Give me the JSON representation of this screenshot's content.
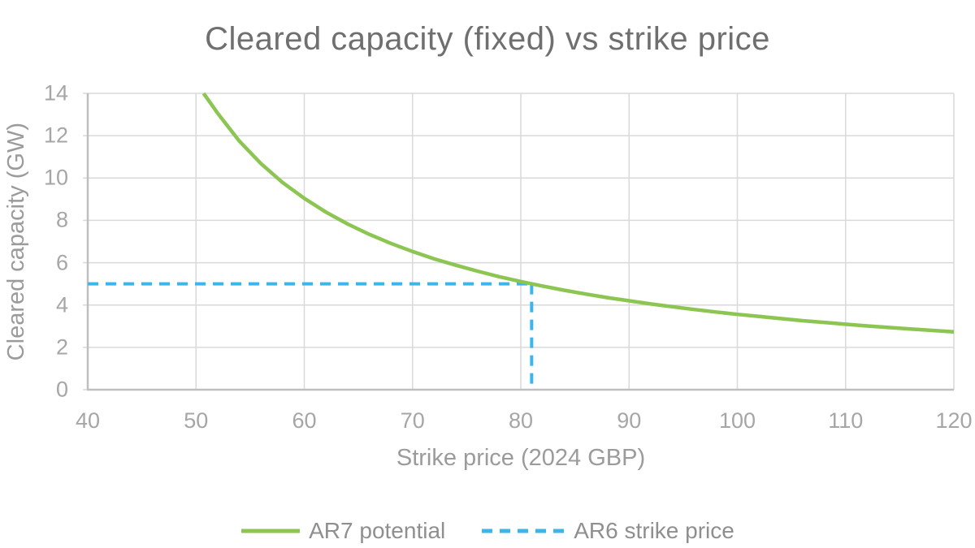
{
  "colors": {
    "background": "#ffffff",
    "gridline": "#d9d9d9",
    "axis": "#bfbfbf",
    "tick_text": "#a6a6a6",
    "axis_title_text": "#9b9b9b",
    "title_text": "#6f6f6f",
    "legend_text": "#8f8f8f",
    "ar7_green": "#8cc552",
    "ar6_blue": "#3db5ea"
  },
  "chart_data": {
    "type": "line",
    "title": "Cleared capacity (fixed) vs strike price",
    "xlabel": "Strike price (2024 GBP)",
    "ylabel": "Cleared capacity (GW)",
    "xlim": [
      40,
      120
    ],
    "ylim": [
      0,
      14
    ],
    "xticks": [
      40,
      50,
      60,
      70,
      80,
      90,
      100,
      110,
      120
    ],
    "yticks": [
      0,
      2,
      4,
      6,
      8,
      10,
      12,
      14
    ],
    "grid": true,
    "legend_position": "bottom",
    "series": [
      {
        "name": "AR7 potential",
        "type": "line",
        "style": "solid",
        "color": "#8cc552",
        "points": [
          [
            50.7,
            14.0
          ],
          [
            52,
            13.06
          ],
          [
            54,
            11.75
          ],
          [
            56,
            10.68
          ],
          [
            58,
            9.79
          ],
          [
            60,
            9.04
          ],
          [
            62,
            8.39
          ],
          [
            64,
            7.83
          ],
          [
            66,
            7.34
          ],
          [
            68,
            6.91
          ],
          [
            70,
            6.53
          ],
          [
            72,
            6.18
          ],
          [
            74,
            5.88
          ],
          [
            76,
            5.6
          ],
          [
            78,
            5.34
          ],
          [
            80,
            5.11
          ],
          [
            81,
            5.0
          ],
          [
            82,
            4.9
          ],
          [
            84,
            4.7
          ],
          [
            86,
            4.52
          ],
          [
            88,
            4.35
          ],
          [
            90,
            4.2
          ],
          [
            92,
            4.05
          ],
          [
            94,
            3.92
          ],
          [
            96,
            3.79
          ],
          [
            98,
            3.67
          ],
          [
            100,
            3.56
          ],
          [
            102,
            3.46
          ],
          [
            104,
            3.36
          ],
          [
            106,
            3.26
          ],
          [
            108,
            3.18
          ],
          [
            110,
            3.09
          ],
          [
            112,
            3.01
          ],
          [
            114,
            2.94
          ],
          [
            116,
            2.87
          ],
          [
            118,
            2.8
          ],
          [
            120,
            2.73
          ]
        ]
      },
      {
        "name": "AR6 strike price",
        "type": "reference-line",
        "style": "dashed",
        "color": "#3db5ea",
        "x": 81,
        "y": 5,
        "segments": [
          [
            [
              40,
              5
            ],
            [
              81,
              5
            ]
          ],
          [
            [
              81,
              5
            ],
            [
              81,
              0
            ]
          ]
        ]
      }
    ]
  }
}
